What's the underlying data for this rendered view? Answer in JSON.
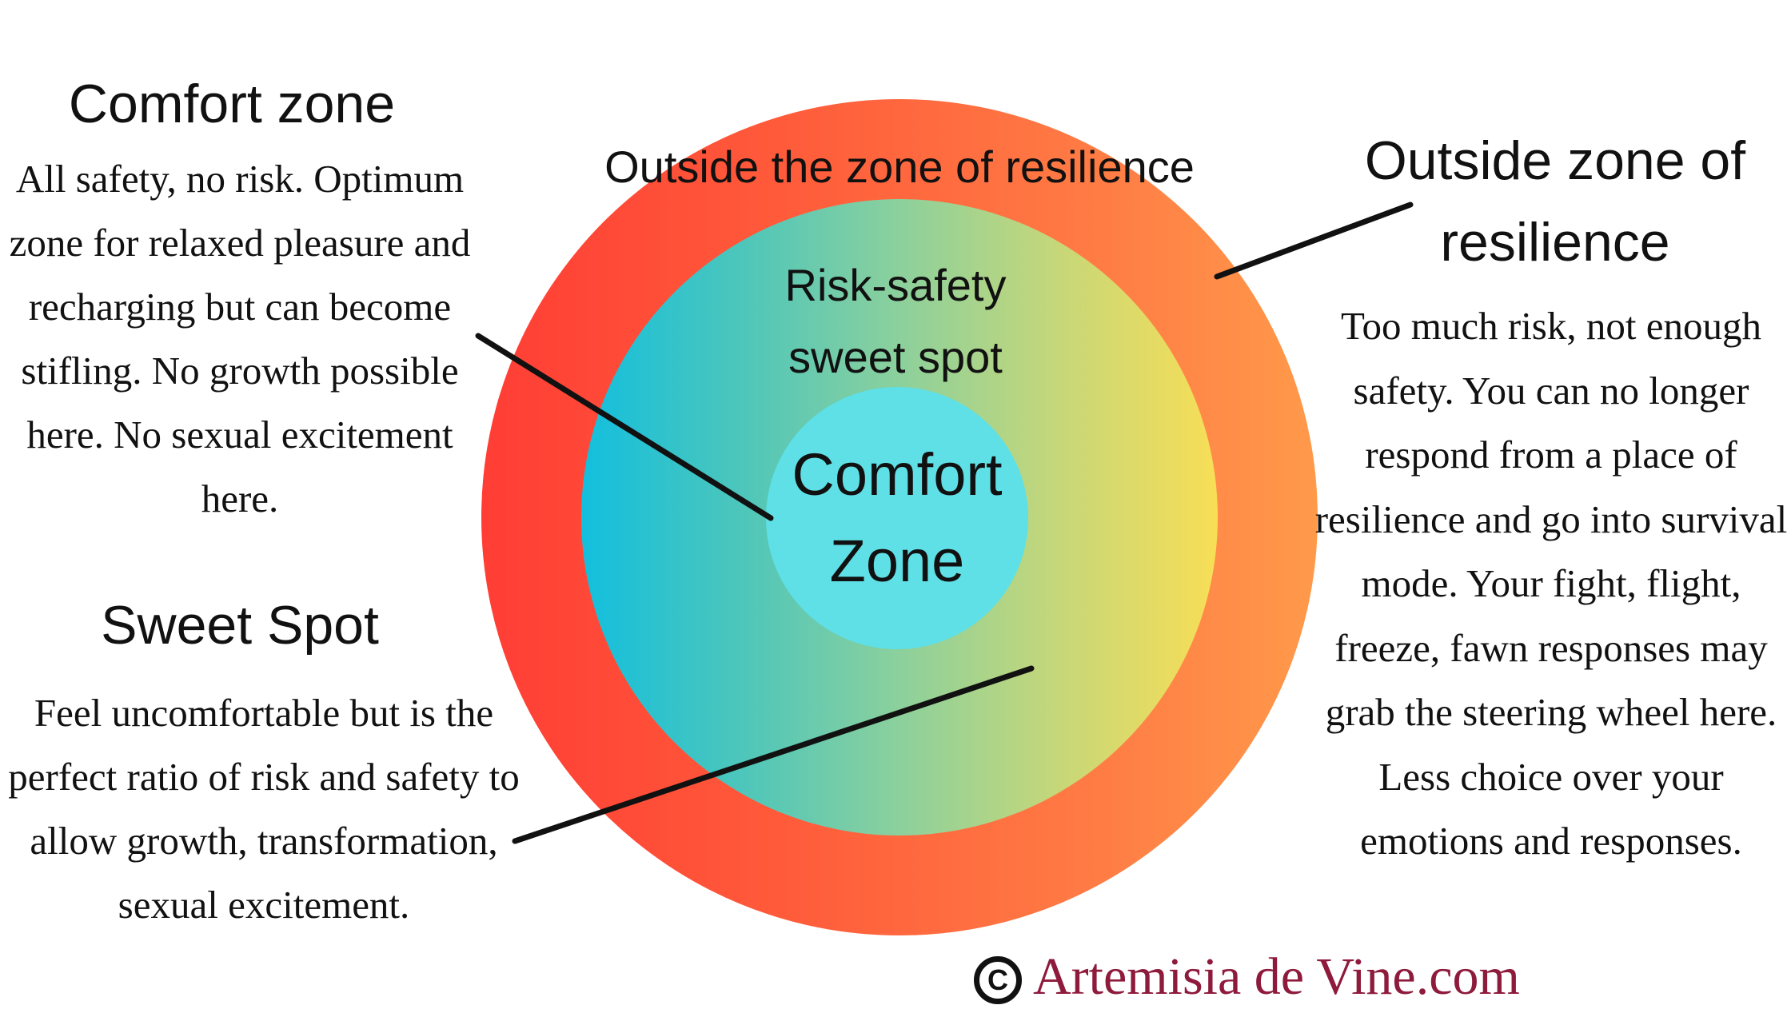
{
  "diagram": {
    "outer_ring_label": "Outside the zone of resilience",
    "middle_ring_label_line1": "Risk-safety",
    "middle_ring_label_line2": "sweet spot",
    "inner_circle_label_line1": "Comfort",
    "inner_circle_label_line2": "Zone",
    "colors": {
      "outer_ring_left": "#ff3d35",
      "outer_ring_right": "#ff9a4a",
      "middle_ring_left": "#12bfde",
      "middle_ring_right": "#f8de56",
      "inner_circle": "#5ee0e6",
      "credit_text": "#8e1a3c"
    }
  },
  "comfort_zone": {
    "title": "Comfort zone",
    "description": "All safety, no risk. Optimum zone for relaxed pleasure and recharging but can become stifling. No growth possible here. No sexual excitement here."
  },
  "sweet_spot": {
    "title": "Sweet Spot",
    "description": "Feel uncomfortable but is the perfect ratio of risk and safety to allow growth, transformation, sexual excitement."
  },
  "outside_zone": {
    "title_line1": "Outside zone of",
    "title_line2": "resilience",
    "description": "Too much risk, not enough safety. You can no longer respond from a place of resilience and go into survival mode. Your fight, flight, freeze, fawn responses may grab the steering wheel here. Less choice over your emotions and responses."
  },
  "credit": {
    "icon": "copyright-icon",
    "text": "Artemisia de Vine.com"
  }
}
